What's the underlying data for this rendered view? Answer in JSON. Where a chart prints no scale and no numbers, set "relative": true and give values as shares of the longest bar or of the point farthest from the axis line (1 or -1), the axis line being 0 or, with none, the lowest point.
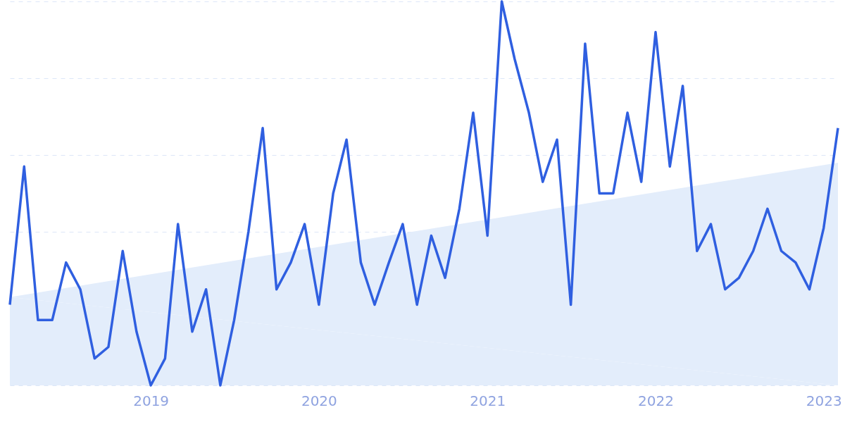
{
  "chart_data": {
    "type": "line",
    "relative": true,
    "grid": "y",
    "marker": "none",
    "line_style": "solid",
    "tick_labels": "x",
    "x": [
      "2018-03",
      "2018-04",
      "2018-05",
      "2018-06",
      "2018-07",
      "2018-08",
      "2018-09",
      "2018-10",
      "2018-11",
      "2018-12",
      "2019-01",
      "2019-02",
      "2019-03",
      "2019-04",
      "2019-05",
      "2019-06",
      "2019-07",
      "2019-08",
      "2019-09",
      "2019-10",
      "2019-11",
      "2019-12",
      "2020-01",
      "2020-02",
      "2020-03",
      "2020-04",
      "2020-05",
      "2020-06",
      "2020-07",
      "2020-08",
      "2020-09",
      "2020-10",
      "2020-11",
      "2020-12",
      "2021-01",
      "2021-02",
      "2021-03",
      "2021-04",
      "2021-05",
      "2021-06",
      "2021-07",
      "2021-08",
      "2021-09",
      "2021-10",
      "2021-11",
      "2021-12",
      "2022-01",
      "2022-02",
      "2022-03",
      "2022-04",
      "2022-05",
      "2022-06",
      "2022-07",
      "2022-08",
      "2022-09",
      "2022-10",
      "2022-11",
      "2022-12",
      "2023-01",
      "2023-02"
    ],
    "xlim": [
      "2018-03",
      "2023-02"
    ],
    "xticks": [
      {
        "value": "2019-01",
        "label": "2019"
      },
      {
        "value": "2020-01",
        "label": "2020"
      },
      {
        "value": "2021-01",
        "label": "2021"
      },
      {
        "value": "2022-01",
        "label": "2022"
      },
      {
        "value": "2023-01",
        "label": "2023"
      }
    ],
    "series": [
      {
        "type": "area",
        "color": "#e3edfb",
        "x": [
          "2018-03",
          "2023-02"
        ],
        "values": [
          0.23,
          0.58
        ]
      },
      {
        "color": "#2f5fe0",
        "values": [
          0.21,
          0.57,
          0.17,
          0.17,
          0.32,
          0.25,
          0.07,
          0.1,
          0.35,
          0.14,
          0.0,
          0.07,
          0.42,
          0.14,
          0.25,
          0.0,
          0.17,
          0.4,
          0.67,
          0.25,
          0.32,
          0.42,
          0.21,
          0.5,
          0.64,
          0.32,
          0.21,
          0.32,
          0.42,
          0.21,
          0.39,
          0.28,
          0.46,
          0.71,
          0.39,
          1.0,
          0.85,
          0.71,
          0.53,
          0.64,
          0.21,
          0.89,
          0.5,
          0.5,
          0.71,
          0.53,
          0.92,
          0.57,
          0.78,
          0.35,
          0.42,
          0.25,
          0.28,
          0.35,
          0.46,
          0.35,
          0.32,
          0.25,
          0.41,
          0.67
        ]
      }
    ]
  }
}
